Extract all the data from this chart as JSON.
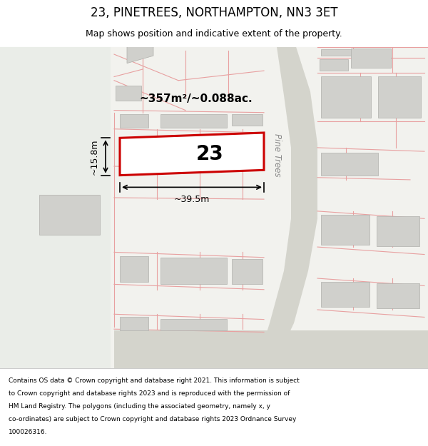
{
  "title": "23, PINETREES, NORTHAMPTON, NN3 3ET",
  "subtitle": "Map shows position and indicative extent of the property.",
  "footer_lines": [
    "Contains OS data © Crown copyright and database right 2021. This information is subject",
    "to Crown copyright and database rights 2023 and is reproduced with the permission of",
    "HM Land Registry. The polygons (including the associated geometry, namely x, y",
    "co-ordinates) are subject to Crown copyright and database rights 2023 Ordnance Survey",
    "100026316."
  ],
  "map_bg": "#f2f2ee",
  "left_bg": "#eaede8",
  "road_color": "#d4d4cc",
  "plot_line_color": "#cc0000",
  "pink": "#e8a0a0",
  "building_fc": "#d0d0cc",
  "building_ec": "#b0b0ac",
  "street_label_color": "#888888",
  "area_label": "~357m²/~0.088ac.",
  "width_label": "~39.5m",
  "height_label": "~15.8m",
  "property_number": "23",
  "street_name": "Pine Trees"
}
